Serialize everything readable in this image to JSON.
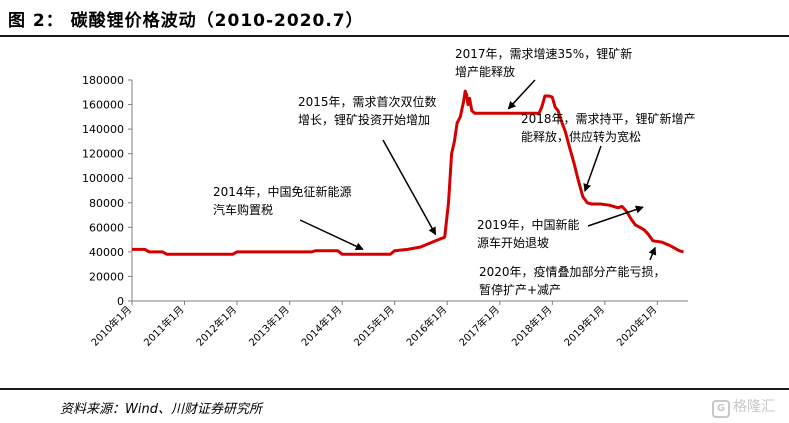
{
  "header": {
    "title": "图 2： 碳酸锂价格波动（2010-2020.7）"
  },
  "footer": {
    "source": "资料来源：Wind、川财证券研究所"
  },
  "watermark": {
    "text": "格隆汇"
  },
  "chart_data": {
    "type": "line",
    "title": "",
    "xlabel": "",
    "ylabel": "",
    "ylim": [
      0,
      180000
    ],
    "xlim": [
      "2010-01-01",
      "2020-08-01"
    ],
    "y_ticks": [
      "0",
      "20000",
      "40000",
      "60000",
      "80000",
      "100000",
      "120000",
      "140000",
      "160000",
      "180000"
    ],
    "x_ticks": [
      {
        "date": "2010-01-01",
        "label": "2010年1月"
      },
      {
        "date": "2011-01-01",
        "label": "2011年1月"
      },
      {
        "date": "2012-01-01",
        "label": "2012年1月"
      },
      {
        "date": "2013-01-01",
        "label": "2013年1月"
      },
      {
        "date": "2014-01-01",
        "label": "2014年1月"
      },
      {
        "date": "2015-01-01",
        "label": "2015年1月"
      },
      {
        "date": "2016-01-01",
        "label": "2016年1月"
      },
      {
        "date": "2017-01-01",
        "label": "2017年1月"
      },
      {
        "date": "2018-01-01",
        "label": "2018年1月"
      },
      {
        "date": "2019-01-01",
        "label": "2019年1月"
      },
      {
        "date": "2020-01-01",
        "label": "2020年1月"
      }
    ],
    "grid": false,
    "series": [
      {
        "name": "",
        "color": "#d40000",
        "points": [
          [
            "2010-01-01",
            42000
          ],
          [
            "2010-04-01",
            42000
          ],
          [
            "2010-05-01",
            40000
          ],
          [
            "2010-08-01",
            40000
          ],
          [
            "2010-09-01",
            38000
          ],
          [
            "2011-12-01",
            38000
          ],
          [
            "2012-01-01",
            40000
          ],
          [
            "2013-06-01",
            40000
          ],
          [
            "2013-07-01",
            41000
          ],
          [
            "2013-12-01",
            41000
          ],
          [
            "2014-01-01",
            38000
          ],
          [
            "2014-12-01",
            38000
          ],
          [
            "2015-01-01",
            41000
          ],
          [
            "2015-04-01",
            42000
          ],
          [
            "2015-07-01",
            44000
          ],
          [
            "2015-09-01",
            47000
          ],
          [
            "2015-11-01",
            50000
          ],
          [
            "2015-12-15",
            52000
          ],
          [
            "2016-01-10",
            80000
          ],
          [
            "2016-02-01",
            120000
          ],
          [
            "2016-02-20",
            130000
          ],
          [
            "2016-03-10",
            145000
          ],
          [
            "2016-04-01",
            150000
          ],
          [
            "2016-04-25",
            163000
          ],
          [
            "2016-05-05",
            171000
          ],
          [
            "2016-05-15",
            168000
          ],
          [
            "2016-05-25",
            160000
          ],
          [
            "2016-06-05",
            165000
          ],
          [
            "2016-06-20",
            155000
          ],
          [
            "2016-07-10",
            153000
          ],
          [
            "2017-10-01",
            153000
          ],
          [
            "2017-10-20",
            158000
          ],
          [
            "2017-11-10",
            167000
          ],
          [
            "2017-12-10",
            167000
          ],
          [
            "2018-01-01",
            166000
          ],
          [
            "2018-01-20",
            158000
          ],
          [
            "2018-02-10",
            155000
          ],
          [
            "2018-03-10",
            145000
          ],
          [
            "2018-04-01",
            138000
          ],
          [
            "2018-05-01",
            125000
          ],
          [
            "2018-06-01",
            112000
          ],
          [
            "2018-07-01",
            98000
          ],
          [
            "2018-08-01",
            85000
          ],
          [
            "2018-09-01",
            80000
          ],
          [
            "2018-10-01",
            79000
          ],
          [
            "2018-12-01",
            79000
          ],
          [
            "2019-02-01",
            78000
          ],
          [
            "2019-04-01",
            76000
          ],
          [
            "2019-05-01",
            77000
          ],
          [
            "2019-06-01",
            73000
          ],
          [
            "2019-07-01",
            67000
          ],
          [
            "2019-08-01",
            62000
          ],
          [
            "2019-09-01",
            60000
          ],
          [
            "2019-10-01",
            58000
          ],
          [
            "2019-11-01",
            54000
          ],
          [
            "2019-12-01",
            49000
          ],
          [
            "2020-02-01",
            48000
          ],
          [
            "2020-04-01",
            45000
          ],
          [
            "2020-06-01",
            41000
          ],
          [
            "2020-07-01",
            40000
          ]
        ]
      }
    ],
    "annotations": [
      {
        "lines": [
          "2014年，中国免征新能源",
          "汽车购置税"
        ],
        "arrow_to": [
          "2014-07-01",
          40000
        ]
      },
      {
        "lines": [
          "2015年，需求首次双位数",
          "增长，锂矿投资开始增加"
        ],
        "arrow_to": [
          "2015-11-01",
          50000
        ]
      },
      {
        "lines": [
          "2017年，需求增速35%，锂矿新",
          "增产能释放"
        ],
        "arrow_to": [
          "2017-02-01",
          153000
        ]
      },
      {
        "lines": [
          "2018年，需求持平，锂矿新增产",
          "能释放，供应转为宽松"
        ],
        "arrow_to": [
          "2018-08-01",
          85000
        ]
      },
      {
        "lines": [
          "2019年，中国新能",
          "源车开始退坡"
        ],
        "arrow_to": [
          "2019-11-01",
          78000
        ]
      },
      {
        "lines": [
          "2020年，疫情叠加部分产能亏损，",
          "暂停扩产+减产"
        ],
        "arrow_to": [
          "2020-01-01",
          48000
        ]
      }
    ]
  }
}
